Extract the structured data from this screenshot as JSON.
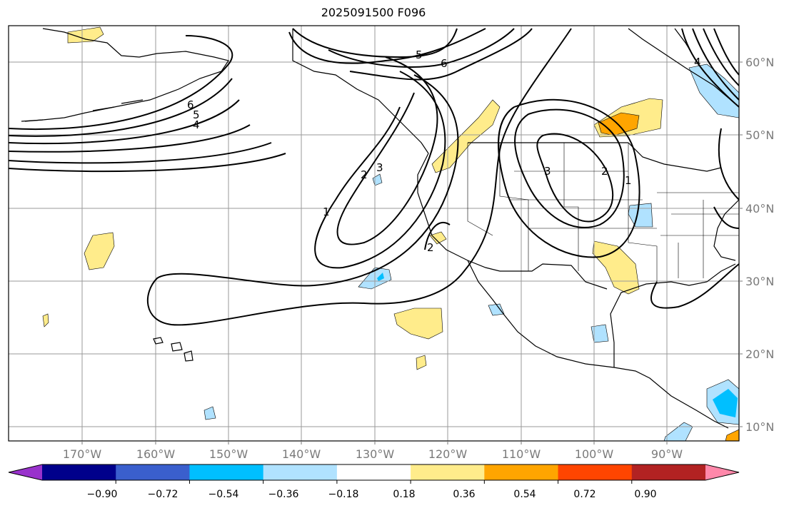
{
  "title": "2025091500 F096",
  "lon_labels": [
    "170°W",
    "160°W",
    "150°W",
    "140°W",
    "130°W",
    "120°W",
    "110°W",
    "100°W",
    "90°W"
  ],
  "lat_labels": [
    "60°N",
    "50°N",
    "40°N",
    "30°N",
    "20°N",
    "10°N"
  ],
  "contour_labels": [
    "6",
    "5",
    "4",
    "5",
    "6",
    "1",
    "2",
    "3",
    "3",
    "2",
    "1",
    "2",
    "4"
  ],
  "colorbar": {
    "ticks": [
      "−0.90",
      "−0.72",
      "−0.54",
      "−0.36",
      "−0.18",
      "0.18",
      "0.36",
      "0.54",
      "0.72",
      "0.90"
    ],
    "colors": [
      "#9932cc",
      "#00008b",
      "#3a5fcd",
      "#00bfff",
      "#b0e2ff",
      "#ffffff",
      "#ffec8b",
      "#ffa500",
      "#ff4500",
      "#b22222",
      "#ff88aa"
    ]
  }
}
